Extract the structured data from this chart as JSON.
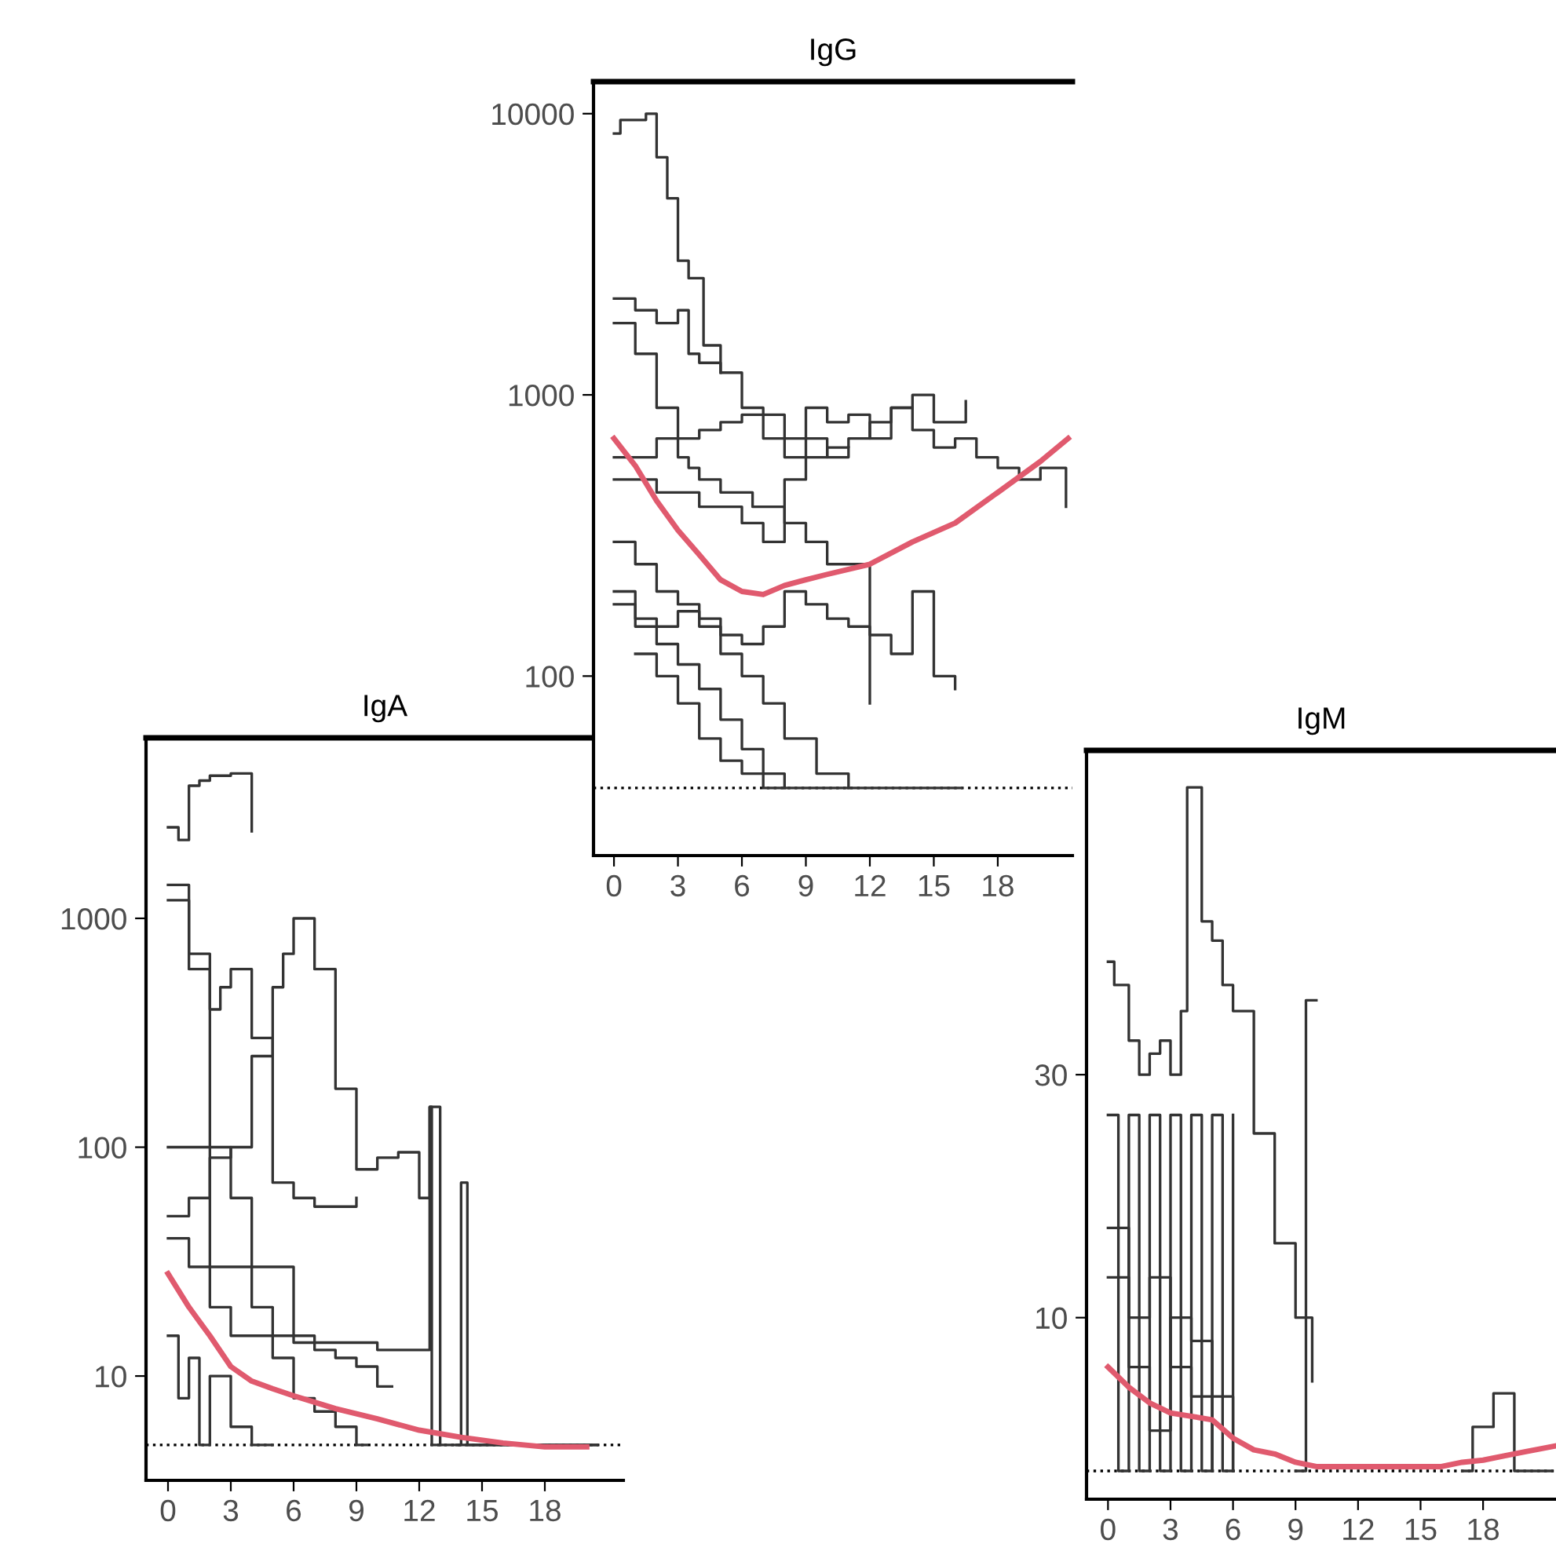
{
  "chart_data": [
    {
      "type": "step",
      "title": "IgG",
      "log": "y",
      "grid": false,
      "legend": false,
      "line_style": "solid",
      "marker": "none",
      "xlim": [
        -0.96,
        21.5
      ],
      "xticks": [
        0,
        3,
        6,
        9,
        12,
        15,
        18
      ],
      "ylim": [
        23,
        13000
      ],
      "yticks": [
        100,
        1000,
        10000
      ],
      "ref_lines": [
        {
          "axis": "y",
          "value": 40,
          "line_style": "dotted",
          "color": "#000000"
        }
      ],
      "series": [
        {
          "color": "#333333",
          "x": [
            0,
            0.3,
            1.5,
            2,
            2.5,
            3,
            3.5,
            4.2,
            5
          ],
          "values": [
            8500,
            9500,
            10000,
            7000,
            5000,
            3000,
            2600,
            1500,
            1200
          ]
        },
        {
          "color": "#333333",
          "x": [
            0,
            1,
            2,
            3,
            3.5,
            4,
            5,
            6,
            7,
            8,
            9,
            10,
            11
          ],
          "values": [
            2200,
            2000,
            1800,
            2000,
            1400,
            1300,
            1200,
            900,
            850,
            700,
            700,
            600,
            650
          ]
        },
        {
          "color": "#333333",
          "x": [
            0,
            1,
            2,
            3,
            3.5,
            4,
            5,
            6.5,
            8,
            9,
            10,
            12
          ],
          "values": [
            1800,
            1400,
            900,
            600,
            550,
            500,
            450,
            400,
            350,
            300,
            250,
            80
          ]
        },
        {
          "color": "#333333",
          "x": [
            0,
            1,
            2,
            3,
            4,
            5,
            6,
            7,
            8,
            9.5,
            11
          ],
          "values": [
            300,
            250,
            200,
            180,
            150,
            120,
            100,
            80,
            60,
            45,
            40
          ]
        },
        {
          "color": "#333333",
          "x": [
            0,
            1,
            2,
            3,
            4,
            5,
            6,
            7,
            8
          ],
          "values": [
            200,
            150,
            130,
            110,
            90,
            70,
            55,
            45,
            40
          ]
        },
        {
          "color": "#333333",
          "x": [
            0,
            2,
            4,
            6,
            7,
            8,
            9,
            10,
            11,
            12,
            13,
            14,
            15,
            16,
            17,
            18,
            19,
            20,
            21.2
          ],
          "values": [
            500,
            450,
            400,
            350,
            300,
            500,
            600,
            650,
            700,
            800,
            900,
            750,
            650,
            700,
            600,
            550,
            500,
            550,
            400
          ]
        },
        {
          "color": "#333333",
          "x": [
            0,
            2,
            4,
            5,
            6,
            7,
            8,
            9,
            10,
            11,
            12,
            13,
            14,
            15,
            16.5
          ],
          "values": [
            600,
            700,
            750,
            800,
            850,
            700,
            600,
            900,
            800,
            850,
            700,
            900,
            1000,
            800,
            950
          ]
        },
        {
          "color": "#333333",
          "x": [
            0,
            1,
            2,
            3,
            4,
            5,
            6,
            7,
            8,
            9,
            10,
            11,
            12,
            13,
            14,
            15,
            16
          ],
          "values": [
            180,
            160,
            150,
            170,
            160,
            140,
            130,
            150,
            200,
            180,
            160,
            150,
            140,
            120,
            200,
            100,
            90
          ]
        },
        {
          "color": "#333333",
          "x": [
            1,
            2,
            3,
            4,
            5,
            6,
            7,
            8,
            9,
            10,
            11,
            14,
            15,
            16.3
          ],
          "values": [
            120,
            100,
            80,
            60,
            50,
            45,
            40,
            40,
            40,
            40,
            40,
            40,
            40,
            40
          ]
        },
        {
          "type": "line",
          "color": "#e05a6e",
          "x": [
            0,
            1,
            2,
            3,
            4,
            5,
            6,
            7,
            8,
            9,
            10,
            12,
            14,
            16,
            18,
            20,
            21.3
          ],
          "values": [
            700,
            560,
            420,
            330,
            270,
            220,
            200,
            195,
            210,
            220,
            230,
            250,
            300,
            350,
            450,
            580,
            700
          ]
        }
      ]
    },
    {
      "type": "step",
      "title": "IgA",
      "log": "y",
      "grid": false,
      "legend": false,
      "line_style": "solid",
      "marker": "none",
      "xlim": [
        -1.05,
        21.75
      ],
      "xticks": [
        0,
        3,
        6,
        9,
        12,
        15,
        18
      ],
      "ylim": [
        3.5,
        6150
      ],
      "yticks": [
        10,
        100,
        1000
      ],
      "ref_lines": [
        {
          "axis": "y",
          "value": 5,
          "line_style": "dotted",
          "color": "#000000"
        }
      ],
      "series": [
        {
          "color": "#333333",
          "x": [
            0,
            0.5,
            1,
            1.5,
            2,
            3,
            4
          ],
          "values": [
            2500,
            2200,
            3800,
            4000,
            4200,
            4300,
            2400
          ]
        },
        {
          "color": "#333333",
          "x": [
            0,
            1,
            2,
            3,
            4,
            5,
            5.5,
            6,
            7,
            8,
            9,
            10,
            11,
            12,
            12.5,
            13
          ],
          "values": [
            50,
            60,
            90,
            100,
            250,
            500,
            700,
            1000,
            600,
            180,
            80,
            90,
            95,
            60,
            150,
            5
          ]
        },
        {
          "color": "#333333",
          "x": [
            0,
            1,
            2,
            2.5,
            3,
            4,
            5,
            6,
            7,
            8,
            9
          ],
          "values": [
            1200,
            700,
            400,
            500,
            600,
            300,
            70,
            60,
            55,
            55,
            60
          ]
        },
        {
          "color": "#333333",
          "x": [
            0,
            1,
            2,
            3,
            4,
            5,
            6,
            7,
            8,
            9,
            10,
            10.7
          ],
          "values": [
            1400,
            600,
            100,
            60,
            30,
            30,
            15,
            13,
            12,
            11,
            9,
            9
          ]
        },
        {
          "color": "#333333",
          "x": [
            0,
            1,
            2,
            3,
            4,
            5,
            6,
            7,
            8,
            9,
            9.5
          ],
          "values": [
            40,
            30,
            20,
            15,
            15,
            12,
            8,
            7,
            6,
            5,
            5
          ]
        },
        {
          "color": "#333333",
          "x": [
            0,
            0.5,
            1,
            1.5,
            2,
            3,
            4,
            5
          ],
          "values": [
            15,
            8,
            12,
            5,
            10,
            6,
            5,
            5
          ]
        },
        {
          "color": "#333333",
          "x": [
            13.8,
            14,
            14.2,
            14.3,
            14.5,
            20.5
          ],
          "values": [
            5,
            70,
            70,
            5,
            5,
            5
          ]
        },
        {
          "color": "#333333",
          "x": [
            0,
            2,
            4,
            5,
            6,
            8,
            10,
            12.5,
            12.6,
            13,
            20.5
          ],
          "values": [
            100,
            30,
            20,
            15,
            14,
            14,
            13,
            150,
            5,
            5,
            5
          ]
        },
        {
          "type": "line",
          "color": "#e05a6e",
          "x": [
            0,
            1,
            2,
            3,
            4,
            5,
            6,
            8,
            10,
            12,
            14,
            16,
            18,
            20
          ],
          "values": [
            28,
            20,
            15,
            11,
            9.5,
            8.8,
            8.2,
            7.2,
            6.5,
            5.8,
            5.4,
            5.1,
            4.9,
            4.9
          ]
        }
      ]
    },
    {
      "type": "step",
      "title": "IgM",
      "log": "y",
      "grid": false,
      "legend": false,
      "line_style": "solid",
      "marker": "none",
      "xlim": [
        -1.03,
        21.5
      ],
      "xticks": [
        0,
        3,
        6,
        9,
        12,
        15,
        18
      ],
      "ylim": [
        4.4,
        130
      ],
      "yticks": [
        10,
        30
      ],
      "ref_lines": [
        {
          "axis": "y",
          "value": 5,
          "line_style": "dotted",
          "color": "#000000"
        }
      ],
      "series": [
        {
          "color": "#333333",
          "x": [
            0,
            0.3,
            1,
            1.5,
            2,
            2.5,
            3,
            3.5,
            3.8,
            4.5,
            5,
            5.5,
            6,
            7,
            8,
            9,
            9.8
          ],
          "values": [
            50,
            45,
            35,
            30,
            33,
            35,
            30,
            40,
            110,
            60,
            55,
            45,
            40,
            23,
            14,
            10,
            7.5
          ]
        },
        {
          "color": "#333333",
          "x": [
            0,
            0.5,
            1,
            1.5,
            2,
            2.5,
            3,
            3.5,
            4,
            4.5,
            5,
            5.5,
            6
          ],
          "values": [
            25,
            5,
            25,
            5,
            25,
            5,
            25,
            5,
            25,
            5,
            25,
            5,
            25
          ]
        },
        {
          "color": "#333333",
          "x": [
            9,
            9.5,
            10
          ],
          "values": [
            5,
            42,
            42
          ]
        },
        {
          "color": "#333333",
          "x": [
            17,
            17.5,
            18.5,
            19.5,
            21.3
          ],
          "values": [
            5,
            6.1,
            7.1,
            5,
            5
          ]
        },
        {
          "color": "#333333",
          "x": [
            0,
            1,
            2,
            3,
            4,
            5
          ],
          "values": [
            15,
            10,
            12,
            8,
            7,
            5
          ]
        },
        {
          "color": "#333333",
          "x": [
            0,
            1,
            2,
            3,
            4,
            5,
            6
          ],
          "values": [
            12,
            8,
            6,
            10,
            9,
            7,
            5
          ]
        },
        {
          "type": "line",
          "color": "#e05a6e",
          "x": [
            0,
            1,
            2,
            3,
            4,
            5,
            6,
            7,
            8,
            9,
            10,
            12,
            14,
            16,
            17,
            18,
            19,
            20,
            21.5
          ],
          "values": [
            8,
            7.3,
            6.8,
            6.5,
            6.4,
            6.3,
            5.8,
            5.5,
            5.4,
            5.2,
            5.1,
            5.1,
            5.1,
            5.1,
            5.2,
            5.25,
            5.35,
            5.45,
            5.6
          ]
        }
      ]
    }
  ]
}
